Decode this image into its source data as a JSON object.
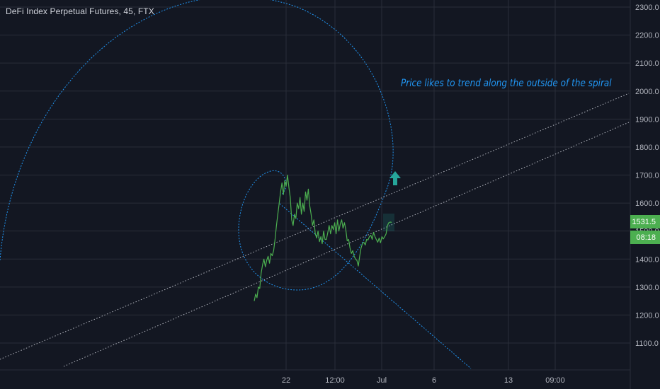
{
  "header": {
    "title": "DeFi Index Perpetual Futures, 45, FTX"
  },
  "annotation": {
    "text": "Price likes to trend along the outside of the spiral"
  },
  "price_tag": {
    "price": "1531.5",
    "countdown": "08:18"
  },
  "colors": {
    "background": "#131722",
    "grid": "#2a2e39",
    "price_line": "#4caf50",
    "drawing": "#2196f3",
    "trendline": "#b2b5be",
    "arrow": "#26a69a",
    "axis_text": "#b2b5be"
  },
  "chart_data": {
    "type": "line",
    "symbol": "DeFi Index Perpetual Futures",
    "interval": "45",
    "exchange": "FTX",
    "y_ticks": [
      "2300.0",
      "2200.0",
      "2100.0",
      "2000.0",
      "1900.0",
      "1800.0",
      "1700.0",
      "1600.0",
      "1500.0",
      "1400.0",
      "1300.0",
      "1200.0",
      "1100.0"
    ],
    "ylim": [
      1050,
      2320
    ],
    "x_ticks": [
      "22",
      "12:00",
      "Jul",
      "6",
      "13",
      "09:00"
    ],
    "grid": true,
    "last_price": 1531.5,
    "series": [
      {
        "values": [
          1250,
          1275,
          1262,
          1300,
          1295,
          1350,
          1380,
          1400,
          1372,
          1395,
          1410,
          1385,
          1420,
          1412,
          1430,
          1470,
          1520,
          1560,
          1600,
          1640,
          1672,
          1630,
          1680,
          1660,
          1700,
          1655,
          1620,
          1540,
          1520,
          1560,
          1545,
          1600,
          1580,
          1620,
          1560,
          1600,
          1570,
          1640,
          1610,
          1650,
          1590,
          1560,
          1520,
          1540,
          1490,
          1475,
          1500,
          1462,
          1480,
          1455,
          1500,
          1470,
          1470,
          1495,
          1520,
          1490,
          1520,
          1505,
          1530,
          1490,
          1540,
          1500,
          1525,
          1540,
          1510,
          1530,
          1505,
          1465,
          1470,
          1440,
          1420,
          1430,
          1410,
          1400,
          1395,
          1375,
          1410,
          1440,
          1455,
          1460,
          1450,
          1470,
          1468,
          1480,
          1485,
          1470,
          1495,
          1480,
          1470,
          1460,
          1475,
          1458,
          1480,
          1472,
          1480,
          1490,
          1520,
          1530,
          1532,
          1531
        ]
      }
    ],
    "annotations": [
      "Price likes to trend along the outside of the spiral"
    ]
  }
}
